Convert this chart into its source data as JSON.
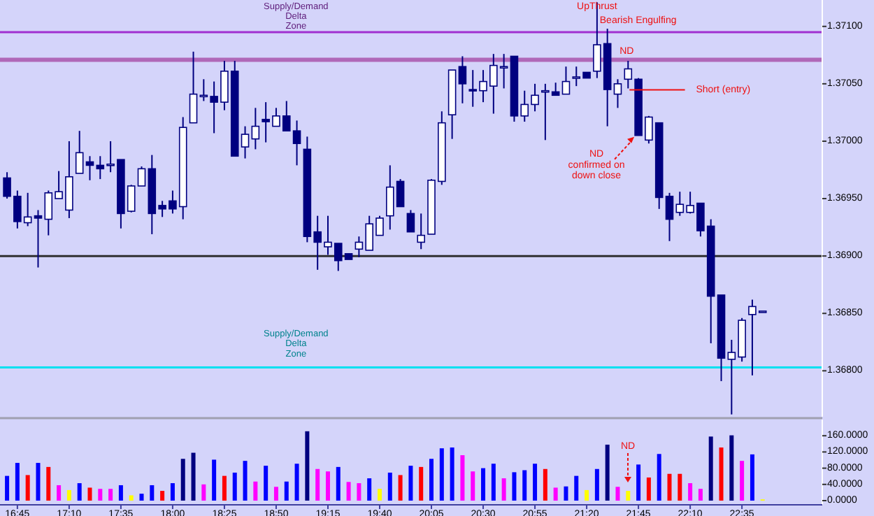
{
  "chart_data": [
    {
      "type": "candlestick",
      "tick_labels": "y",
      "x": [
        16.6667,
        16.75,
        16.8333,
        16.9167,
        17,
        17.0833,
        17.1667,
        17.25,
        17.3333,
        17.4167,
        17.5,
        17.5833,
        17.6667,
        17.75,
        17.8333,
        17.9167,
        18,
        18.0833,
        18.1667,
        18.25,
        18.3333,
        18.4167,
        18.5,
        18.5833,
        18.6667,
        18.75,
        18.8333,
        18.9167,
        19,
        19.0833,
        19.1667,
        19.25,
        19.3333,
        19.4167,
        19.5,
        19.5833,
        19.6667,
        19.75,
        19.8333,
        19.9167,
        20,
        20.0833,
        20.1667,
        20.25,
        20.3333,
        20.4167,
        20.5,
        20.5833,
        20.6667,
        20.75,
        20.8333,
        20.9167,
        21,
        21.0833,
        21.1667,
        21.25,
        21.3333,
        21.4167,
        21.5,
        21.5833,
        21.6667,
        21.75,
        21.8333,
        21.9167,
        22,
        22.0833,
        22.1667,
        22.25,
        22.3333,
        22.4167,
        22.5,
        22.5833,
        22.6667,
        22.75
      ],
      "ohlc": [
        [
          1.36968,
          1.36973,
          1.3695,
          1.36952
        ],
        [
          1.36952,
          1.36957,
          1.36924,
          1.3693
        ],
        [
          1.36929,
          1.36955,
          1.36926,
          1.36934
        ],
        [
          1.36935,
          1.3694,
          1.3689,
          1.36933
        ],
        [
          1.36932,
          1.36957,
          1.36918,
          1.36955
        ],
        [
          1.3695,
          1.36974,
          1.3695,
          1.36956
        ],
        [
          1.3694,
          1.37,
          1.36933,
          1.36969
        ],
        [
          1.36972,
          1.37009,
          1.36972,
          1.3699
        ],
        [
          1.36982,
          1.36987,
          1.36966,
          1.36979
        ],
        [
          1.36979,
          1.36987,
          1.36967,
          1.36976
        ],
        [
          1.36979,
          1.37,
          1.36973,
          1.3698
        ],
        [
          1.36984,
          1.36984,
          1.36924,
          1.36937
        ],
        [
          1.36939,
          1.36962,
          1.36938,
          1.36961
        ],
        [
          1.36961,
          1.36978,
          1.36961,
          1.36976
        ],
        [
          1.36976,
          1.36988,
          1.36919,
          1.36937
        ],
        [
          1.36944,
          1.36948,
          1.36934,
          1.36941
        ],
        [
          1.36948,
          1.36957,
          1.36937,
          1.36941
        ],
        [
          1.36943,
          1.37021,
          1.36932,
          1.37012
        ],
        [
          1.37016,
          1.37078,
          1.37016,
          1.37041
        ],
        [
          1.37039,
          1.37054,
          1.37035,
          1.3704
        ],
        [
          1.37039,
          1.37052,
          1.37007,
          1.37034
        ],
        [
          1.37034,
          1.3707,
          1.37027,
          1.37061
        ],
        [
          1.37061,
          1.3707,
          1.36987,
          1.36987
        ],
        [
          1.36995,
          1.37013,
          1.36985,
          1.37006
        ],
        [
          1.37002,
          1.37029,
          1.36993,
          1.37013
        ],
        [
          1.37019,
          1.37034,
          1.36999,
          1.37017
        ],
        [
          1.37013,
          1.37029,
          1.37013,
          1.37022
        ],
        [
          1.37022,
          1.37035,
          1.37009,
          1.37009
        ],
        [
          1.37009,
          1.37018,
          1.36979,
          1.36998
        ],
        [
          1.36993,
          1.37004,
          1.36912,
          1.36917
        ],
        [
          1.36921,
          1.36935,
          1.36888,
          1.36912
        ],
        [
          1.36908,
          1.36935,
          1.36901,
          1.36912
        ],
        [
          1.36911,
          1.36911,
          1.36887,
          1.36896
        ],
        [
          1.36902,
          1.36902,
          1.36897,
          1.36897
        ],
        [
          1.36906,
          1.36917,
          1.36899,
          1.36912
        ],
        [
          1.36905,
          1.36935,
          1.36905,
          1.36928
        ],
        [
          1.36918,
          1.36935,
          1.36918,
          1.36933
        ],
        [
          1.36935,
          1.36979,
          1.36923,
          1.3696
        ],
        [
          1.36965,
          1.36967,
          1.36943,
          1.36943
        ],
        [
          1.36937,
          1.3694,
          1.36921,
          1.36921
        ],
        [
          1.36912,
          1.36937,
          1.36906,
          1.36918
        ],
        [
          1.36919,
          1.36967,
          1.36919,
          1.36966
        ],
        [
          1.36965,
          1.37026,
          1.36962,
          1.37016
        ],
        [
          1.37023,
          1.37062,
          1.37002,
          1.37062
        ],
        [
          1.37065,
          1.37074,
          1.37033,
          1.3705
        ],
        [
          1.37045,
          1.37062,
          1.3703,
          1.37044
        ],
        [
          1.37044,
          1.37062,
          1.37034,
          1.37052
        ],
        [
          1.37048,
          1.37076,
          1.37024,
          1.37066
        ],
        [
          1.37065,
          1.37076,
          1.37046,
          1.37065
        ],
        [
          1.37074,
          1.37074,
          1.37017,
          1.37022
        ],
        [
          1.37022,
          1.37044,
          1.37017,
          1.37032
        ],
        [
          1.37032,
          1.3705,
          1.37026,
          1.3704
        ],
        [
          1.37043,
          1.3705,
          1.37001,
          1.37044
        ],
        [
          1.37043,
          1.37051,
          1.3704,
          1.3704
        ],
        [
          1.37041,
          1.37065,
          1.37041,
          1.37052
        ],
        [
          1.37055,
          1.37065,
          1.37048,
          1.37056
        ],
        [
          1.3706,
          1.3706,
          1.37055,
          1.37055
        ],
        [
          1.37061,
          1.37121,
          1.37055,
          1.37084
        ],
        [
          1.37085,
          1.37098,
          1.37013,
          1.37045
        ],
        [
          1.37041,
          1.37054,
          1.37029,
          1.3705
        ],
        [
          1.37054,
          1.3707,
          1.37046,
          1.37063
        ],
        [
          1.37054,
          1.37055,
          1.37005,
          1.37005
        ],
        [
          1.37001,
          1.37022,
          1.36998,
          1.37021
        ],
        [
          1.37016,
          1.37016,
          1.36941,
          1.36951
        ],
        [
          1.36952,
          1.36955,
          1.36913,
          1.36932
        ],
        [
          1.36938,
          1.36956,
          1.36935,
          1.36945
        ],
        [
          1.36938,
          1.36956,
          1.36937,
          1.36944
        ],
        [
          1.36946,
          1.36946,
          1.36917,
          1.36922
        ],
        [
          1.36926,
          1.36932,
          1.36824,
          1.36865
        ],
        [
          1.36866,
          1.36866,
          1.36791,
          1.36811
        ],
        [
          1.3681,
          1.36827,
          1.36762,
          1.36816
        ],
        [
          1.36812,
          1.36846,
          1.36808,
          1.36844
        ],
        [
          1.36849,
          1.36862,
          1.36796,
          1.36856
        ],
        [
          1.36852,
          1.36852,
          1.36852,
          1.36852
        ]
      ],
      "xlim": [
        16.61,
        23.23
      ],
      "ylim": [
        1.3676,
        1.37123
      ],
      "yticks": [
        {
          "value": 1.371,
          "label": "1.37100"
        },
        {
          "value": 1.3705,
          "label": "1.37050"
        },
        {
          "value": 1.37,
          "label": "1.37000"
        },
        {
          "value": 1.3695,
          "label": "1.36950"
        },
        {
          "value": 1.369,
          "label": "1.36900"
        },
        {
          "value": 1.3685,
          "label": "1.36850"
        },
        {
          "value": 1.368,
          "label": "1.36800"
        }
      ],
      "ref_lines": [
        {
          "axis": "y",
          "value": 1.37095,
          "color": "#a030d0",
          "label": "Supply/Demand\nDelta\nZone"
        },
        {
          "axis": "y",
          "value": 1.37071,
          "color": "#b068b8"
        },
        {
          "axis": "y",
          "value": 1.369,
          "color": "#303030"
        },
        {
          "axis": "y",
          "value": 1.36803,
          "color": "#00e0f0",
          "label": "Supply/Demand\nDelta\nZone"
        }
      ],
      "annotations": [
        {
          "text": "UpThrust",
          "x": 21.4167,
          "y": 1.37121
        },
        {
          "text": "Bearish Engulfing",
          "x": 21.5,
          "y": 1.37098
        },
        {
          "text": "ND",
          "x": 21.6667,
          "y": 1.3707
        },
        {
          "text": "Short (entry)",
          "x": 21.6667,
          "y": 1.37046
        },
        {
          "text": "ND\nconfirmed on\ndown close",
          "x": 21.75,
          "y": 1.37005
        }
      ]
    },
    {
      "type": "bar",
      "x": [
        16.6667,
        16.75,
        16.8333,
        16.9167,
        17,
        17.0833,
        17.1667,
        17.25,
        17.3333,
        17.4167,
        17.5,
        17.5833,
        17.6667,
        17.75,
        17.8333,
        17.9167,
        18,
        18.0833,
        18.1667,
        18.25,
        18.3333,
        18.4167,
        18.5,
        18.5833,
        18.6667,
        18.75,
        18.8333,
        18.9167,
        19,
        19.0833,
        19.1667,
        19.25,
        19.3333,
        19.4167,
        19.5,
        19.5833,
        19.6667,
        19.75,
        19.8333,
        19.9167,
        20,
        20.0833,
        20.1667,
        20.25,
        20.3333,
        20.4167,
        20.5,
        20.5833,
        20.6667,
        20.75,
        20.8333,
        20.9167,
        21,
        21.0833,
        21.1667,
        21.25,
        21.3333,
        21.4167,
        21.5,
        21.5833,
        21.6667,
        21.75,
        21.8333,
        21.9167,
        22,
        22.0833,
        22.1667,
        22.25,
        22.3333,
        22.4167,
        22.5,
        22.5833,
        22.6667,
        22.75
      ],
      "values": [
        61,
        93,
        63,
        93,
        83,
        38,
        26,
        43,
        32,
        29,
        29,
        38,
        13,
        17,
        38,
        24,
        43,
        103,
        118,
        40,
        101,
        61,
        69,
        98,
        47,
        86,
        34,
        47,
        91,
        171,
        78,
        72,
        83,
        46,
        43,
        55,
        29,
        69,
        63,
        86,
        83,
        103,
        129,
        131,
        112,
        72,
        80,
        91,
        55,
        70,
        75,
        91,
        78,
        32,
        35,
        61,
        26,
        78,
        138,
        34,
        24,
        89,
        57,
        115,
        66,
        66,
        43,
        29,
        158,
        131,
        161,
        98,
        114,
        3
      ],
      "colors": [
        "#0000ff",
        "#0000ff",
        "#ff0000",
        "#0000ff",
        "#ff0000",
        "#ff00ff",
        "#ffff00",
        "#0000ff",
        "#ff0000",
        "#ff00ff",
        "#ff00ff",
        "#0000ff",
        "#ffff00",
        "#0000ff",
        "#0000ff",
        "#ff0000",
        "#0000ff",
        "#000080",
        "#000080",
        "#ff00ff",
        "#0000ff",
        "#ff0000",
        "#0000ff",
        "#0000ff",
        "#ff00ff",
        "#0000ff",
        "#ff00ff",
        "#0000ff",
        "#0000ff",
        "#000080",
        "#ff00ff",
        "#ff00ff",
        "#0000ff",
        "#ff00ff",
        "#ff00ff",
        "#0000ff",
        "#ffff00",
        "#0000ff",
        "#ff0000",
        "#0000ff",
        "#ff0000",
        "#0000ff",
        "#0000ff",
        "#0000ff",
        "#ff00ff",
        "#ff00ff",
        "#0000ff",
        "#0000ff",
        "#ff00ff",
        "#0000ff",
        "#0000ff",
        "#0000ff",
        "#ff0000",
        "#ff00ff",
        "#0000ff",
        "#0000ff",
        "#ffff00",
        "#0000ff",
        "#000080",
        "#ff00ff",
        "#ffff00",
        "#0000ff",
        "#ff0000",
        "#0000ff",
        "#ff0000",
        "#ff0000",
        "#ff00ff",
        "#ff00ff",
        "#000080",
        "#ff0000",
        "#000080",
        "#ff00ff",
        "#0000ff",
        "#ffff00"
      ],
      "xlim": [
        16.61,
        23.23
      ],
      "ylim": [
        0,
        200
      ],
      "xticks": [
        {
          "value": 16.75,
          "label": "16:45"
        },
        {
          "value": 17.1667,
          "label": "17:10"
        },
        {
          "value": 17.5833,
          "label": "17:35"
        },
        {
          "value": 18,
          "label": "18:00"
        },
        {
          "value": 18.4167,
          "label": "18:25"
        },
        {
          "value": 18.8333,
          "label": "18:50"
        },
        {
          "value": 19.25,
          "label": "19:15"
        },
        {
          "value": 19.6667,
          "label": "19:40"
        },
        {
          "value": 20.0833,
          "label": "20:05"
        },
        {
          "value": 20.5,
          "label": "20:30"
        },
        {
          "value": 20.9167,
          "label": "20:55"
        },
        {
          "value": 21.3333,
          "label": "21:20"
        },
        {
          "value": 21.75,
          "label": "21:45"
        },
        {
          "value": 22.1667,
          "label": "22:10"
        },
        {
          "value": 22.5833,
          "label": "22:35"
        }
      ],
      "yticks": [
        {
          "value": 160,
          "label": "160.0000"
        },
        {
          "value": 120,
          "label": "120.0000"
        },
        {
          "value": 80,
          "label": "80.0000"
        },
        {
          "value": 40,
          "label": "40.0000"
        },
        {
          "value": 0,
          "label": "0.0000"
        }
      ],
      "annotations": [
        "ND"
      ]
    }
  ]
}
